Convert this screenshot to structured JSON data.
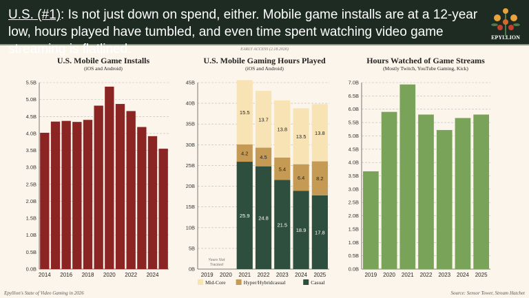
{
  "header": {
    "highlight": "U.S. (#1)",
    "headline": ": Is not just down on spend, either. Mobile game installs are at a 12-year low, hours played have tumbled, and even time spent watching video game streaming is flatlined.",
    "logo_text": "EPYLLION"
  },
  "early_access": "EARLY ACCESS (2.18.2026)",
  "footer": {
    "left": "Epyllion's State of Video Gaming in 2026",
    "right": "Source: Sensor Tower, Stream Hatchet"
  },
  "chart_data": [
    {
      "type": "bar",
      "title": "U.S. Mobile Game Installs",
      "subtitle": "(iOS and Android)",
      "categories": [
        "2014",
        "2015",
        "2016",
        "2017",
        "2018",
        "2019",
        "2020",
        "2021",
        "2022",
        "2023",
        "2024",
        "2025"
      ],
      "xtick_labels": [
        "2014",
        "2016",
        "2018",
        "2020",
        "2022",
        "2024"
      ],
      "values": [
        4.02,
        4.35,
        4.37,
        4.34,
        4.4,
        4.82,
        5.38,
        4.87,
        4.66,
        4.19,
        3.92,
        3.55
      ],
      "ylim": [
        0,
        5.5
      ],
      "yticks": [
        "0.0B",
        "0.5B",
        "1.0B",
        "1.5B",
        "2.0B",
        "2.5B",
        "3.0B",
        "3.5B",
        "4.0B",
        "4.5B",
        "5.0B",
        "5.5B"
      ],
      "color": "#8b2523"
    },
    {
      "type": "stacked-bar",
      "title": "U.S. Mobile Gaming Hours Played",
      "subtitle": "(iOS and Android)",
      "categories": [
        "2019",
        "2020",
        "2021",
        "2022",
        "2023",
        "2024",
        "2025"
      ],
      "annotation": "Years Not Tracked",
      "series": [
        {
          "name": "Casual",
          "color": "#2f4f3e",
          "values": [
            null,
            null,
            25.9,
            24.8,
            21.5,
            18.9,
            17.8
          ]
        },
        {
          "name": "Hyper/Hybridcasual",
          "color": "#c49a55",
          "values": [
            null,
            null,
            4.2,
            4.5,
            5.4,
            6.4,
            8.2
          ]
        },
        {
          "name": "Mid-Core",
          "color": "#f8e3b5",
          "values": [
            null,
            null,
            15.5,
            13.7,
            13.8,
            13.5,
            13.8
          ]
        }
      ],
      "legend_order": [
        "Mid-Core",
        "Hyper/Hybridcasual",
        "Casual"
      ],
      "ylim": [
        0,
        45
      ],
      "yticks": [
        "0B",
        "5B",
        "10B",
        "15B",
        "20B",
        "25B",
        "30B",
        "35B",
        "40B",
        "45B"
      ]
    },
    {
      "type": "bar",
      "title": "Hours Watched of Game Streams",
      "subtitle": "(Mostly Twitch, YouTube Gaming, Kick)",
      "categories": [
        "2019",
        "2020",
        "2021",
        "2022",
        "2023",
        "2024",
        "2025"
      ],
      "xtick_labels": [
        "2019",
        "2020",
        "2021",
        "2022",
        "2023",
        "2024",
        "2025"
      ],
      "values": [
        3.67,
        5.9,
        6.93,
        5.8,
        5.22,
        5.67,
        5.8
      ],
      "ylim": [
        0,
        7
      ],
      "yticks": [
        "0.0B",
        "0.5B",
        "1.0B",
        "1.5B",
        "2.0B",
        "2.5B",
        "3.0B",
        "3.5B",
        "4.0B",
        "4.5B",
        "5.0B",
        "5.5B",
        "6.0B",
        "6.5B",
        "7.0B"
      ],
      "color": "#7aa35a"
    }
  ]
}
